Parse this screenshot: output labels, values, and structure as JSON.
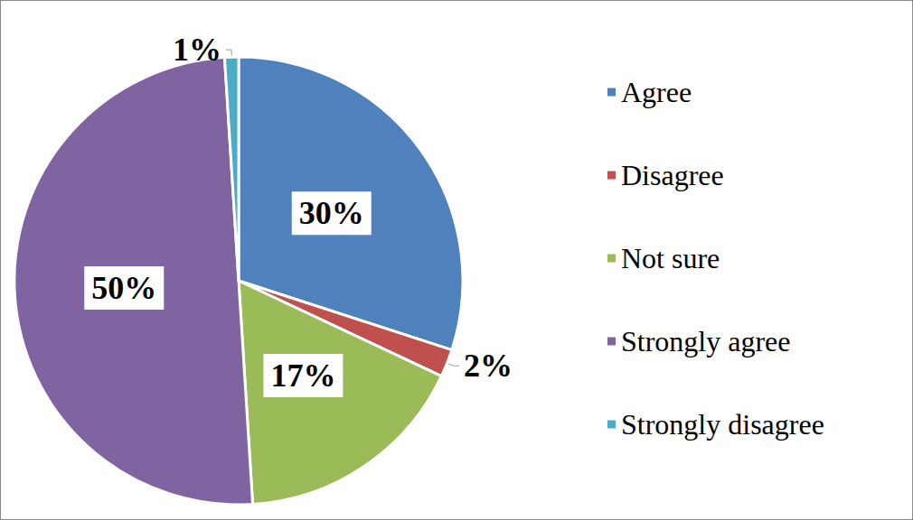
{
  "chart_data": {
    "type": "pie",
    "categories": [
      "Agree",
      "Disagree",
      "Not sure",
      "Strongly agree",
      "Strongly disagree"
    ],
    "values": [
      30,
      2,
      17,
      50,
      1
    ],
    "value_labels": [
      "30%",
      "2%",
      "17%",
      "50%",
      "1%"
    ],
    "colors": [
      "#4f81bd",
      "#c0504d",
      "#9bbb59",
      "#8064a2",
      "#4bacc6"
    ],
    "data_labels": true,
    "legend": "right"
  }
}
